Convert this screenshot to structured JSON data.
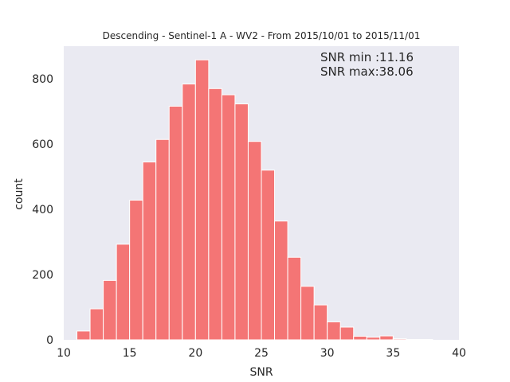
{
  "chart_data": {
    "type": "bar",
    "title": "Descending - Sentinel-1 A - WV2 - From 2015/10/01 to 2015/11/01",
    "xlabel": "SNR",
    "ylabel": "count",
    "xlim": [
      10,
      40
    ],
    "ylim": [
      0,
      900
    ],
    "xticks": [
      "10",
      "15",
      "20",
      "25",
      "30",
      "35",
      "40"
    ],
    "yticks": [
      "0",
      "200",
      "400",
      "600",
      "800"
    ],
    "grid": false,
    "colors": {
      "bar": "#f47575",
      "bar_edge": "#ffffff",
      "plot_bg": "#eaeaf2"
    },
    "bins": [
      {
        "x0": 11.0,
        "x1": 12.0,
        "count": 27
      },
      {
        "x0": 12.0,
        "x1": 13.0,
        "count": 95
      },
      {
        "x0": 13.0,
        "x1": 14.0,
        "count": 182
      },
      {
        "x0": 14.0,
        "x1": 15.0,
        "count": 293
      },
      {
        "x0": 15.0,
        "x1": 16.0,
        "count": 428
      },
      {
        "x0": 16.0,
        "x1": 17.0,
        "count": 545
      },
      {
        "x0": 17.0,
        "x1": 18.0,
        "count": 614
      },
      {
        "x0": 18.0,
        "x1": 19.0,
        "count": 716
      },
      {
        "x0": 19.0,
        "x1": 20.0,
        "count": 784
      },
      {
        "x0": 20.0,
        "x1": 21.0,
        "count": 858
      },
      {
        "x0": 21.0,
        "x1": 22.0,
        "count": 770
      },
      {
        "x0": 22.0,
        "x1": 23.0,
        "count": 751
      },
      {
        "x0": 23.0,
        "x1": 24.0,
        "count": 723
      },
      {
        "x0": 24.0,
        "x1": 25.0,
        "count": 608
      },
      {
        "x0": 25.0,
        "x1": 26.0,
        "count": 520
      },
      {
        "x0": 26.0,
        "x1": 27.0,
        "count": 364
      },
      {
        "x0": 27.0,
        "x1": 28.0,
        "count": 253
      },
      {
        "x0": 28.0,
        "x1": 29.0,
        "count": 164
      },
      {
        "x0": 29.0,
        "x1": 30.0,
        "count": 107
      },
      {
        "x0": 30.0,
        "x1": 31.0,
        "count": 55
      },
      {
        "x0": 31.0,
        "x1": 32.0,
        "count": 39
      },
      {
        "x0": 32.0,
        "x1": 33.0,
        "count": 11
      },
      {
        "x0": 33.0,
        "x1": 34.0,
        "count": 8
      },
      {
        "x0": 34.0,
        "x1": 35.0,
        "count": 12
      },
      {
        "x0": 35.0,
        "x1": 36.0,
        "count": 3
      },
      {
        "x0": 36.0,
        "x1": 37.0,
        "count": 1
      },
      {
        "x0": 37.0,
        "x1": 38.0,
        "count": 1
      }
    ],
    "annotations": [
      "SNR min :11.16",
      "SNR max:38.06"
    ]
  }
}
